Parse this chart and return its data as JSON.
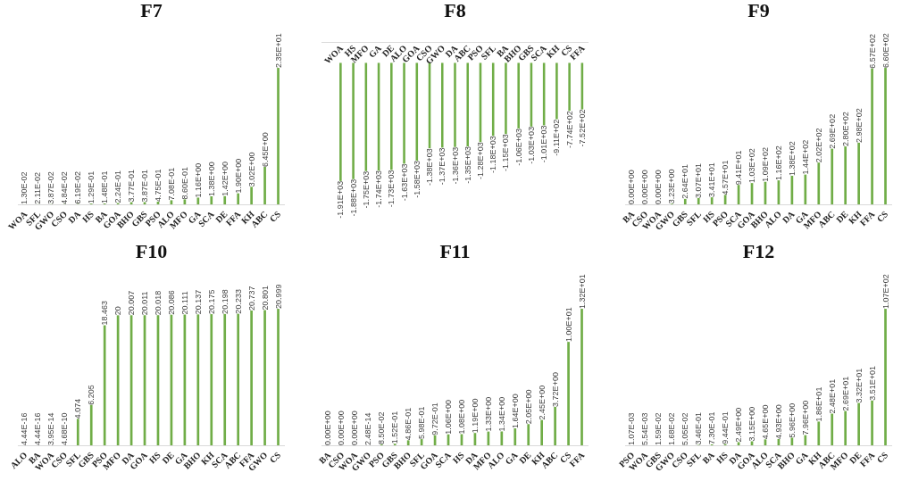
{
  "chart_data": [
    {
      "type": "bar",
      "title": "F7",
      "color": "#70ad47",
      "categories": [
        "WOA",
        "SFL",
        "GWO",
        "CSO",
        "DA",
        "HS",
        "BA",
        "GOA",
        "BHO",
        "GBS",
        "PSO",
        "ALO",
        "MFO",
        "GA",
        "SCA",
        "DE",
        "FFA",
        "KH",
        "ABC",
        "CS"
      ],
      "values": [
        0.013,
        0.0211,
        0.0387,
        0.0484,
        0.0619,
        0.129,
        0.148,
        0.224,
        0.377,
        0.387,
        0.475,
        0.708,
        0.86,
        1.16,
        1.38,
        1.42,
        1.9,
        3.02,
        6.45,
        23.5
      ],
      "value_labels": [
        "1.30E-02",
        "2.11E-02",
        "3.87E-02",
        "4.84E-02",
        "6.19E-02",
        "1.29E-01",
        "1.48E-01",
        "2.24E-01",
        "3.77E-01",
        "3.87E-01",
        "4.75E-01",
        "7.08E-01",
        "8.60E-01",
        "1.16E+00",
        "1.38E+00",
        "1.42E+00",
        "1.90E+00",
        "3.02E+00",
        "6.45E+00",
        "2.35E+01"
      ]
    },
    {
      "type": "bar",
      "title": "F8",
      "color": "#70ad47",
      "categories": [
        "WOA",
        "HS",
        "MFO",
        "GA",
        "DE",
        "ALO",
        "GOA",
        "CSO",
        "GWO",
        "DA",
        "ABC",
        "PSO",
        "SFL",
        "BA",
        "BHO",
        "GBS",
        "SCA",
        "KH",
        "CS",
        "FFA"
      ],
      "values": [
        -1910,
        -1880,
        -1750,
        -1740,
        -1730,
        -1630,
        -1580,
        -1380,
        -1370,
        -1360,
        -1350,
        -1280,
        -1180,
        -1150,
        -1060,
        -1030,
        -1010,
        -911,
        -774,
        -752
      ],
      "value_labels": [
        "-1.91E+03",
        "-1.88E+03",
        "-1.75E+03",
        "-1.74E+03",
        "-1.73E+03",
        "-1.63E+03",
        "-1.58E+03",
        "-1.38E+03",
        "-1.37E+03",
        "-1.36E+03",
        "-1.35E+03",
        "-1.28E+03",
        "-1.18E+03",
        "-1.15E+03",
        "-1.06E+03",
        "-1.03E+03",
        "-1.01E+03",
        "-9.11E+02",
        "-7.74E+02",
        "-7.52E+02"
      ]
    },
    {
      "type": "bar",
      "title": "F9",
      "color": "#70ad47",
      "categories": [
        "BA",
        "CSO",
        "WOA",
        "GWO",
        "GBS",
        "SFL",
        "HS",
        "PSO",
        "SCA",
        "GOA",
        "BHO",
        "ALO",
        "DA",
        "GA",
        "MFO",
        "ABC",
        "DE",
        "KH",
        "FFA",
        "CS"
      ],
      "values": [
        0,
        0,
        0,
        3.23,
        26.4,
        30.7,
        34.1,
        45.7,
        94.1,
        103,
        109,
        116,
        138,
        144,
        202,
        269,
        280,
        298,
        657,
        660
      ],
      "value_labels": [
        "0.00E+00",
        "0.00E+00",
        "0.00E+00",
        "3.23E+00",
        "2.64E+01",
        "3.07E+01",
        "3.41E+01",
        "4.57E+01",
        "9.41E+01",
        "1.03E+02",
        "1.09E+02",
        "1.16E+02",
        "1.38E+02",
        "1.44E+02",
        "2.02E+02",
        "2.69E+02",
        "2.80E+02",
        "2.98E+02",
        "6.57E+02",
        "6.60E+02"
      ]
    },
    {
      "type": "bar",
      "title": "F10",
      "color": "#70ad47",
      "categories": [
        "ALO",
        "BA",
        "WOA",
        "CSO",
        "SFL",
        "GBS",
        "PSO",
        "MFO",
        "DA",
        "GOA",
        "HS",
        "DE",
        "GA",
        "BHO",
        "KH",
        "SCA",
        "ABC",
        "FFA",
        "GWO",
        "CS"
      ],
      "values": [
        4.44e-16,
        4.44e-16,
        3.95e-14,
        4.68e-10,
        4.074,
        6.205,
        18.463,
        20,
        20.007,
        20.011,
        20.018,
        20.086,
        20.111,
        20.137,
        20.175,
        20.198,
        20.233,
        20.737,
        20.801,
        20.999
      ],
      "value_labels": [
        "4.44E-16",
        "4.44E-16",
        "3.95E-14",
        "4.68E-10",
        "4.074",
        "6.205",
        "18.463",
        "20",
        "20.007",
        "20.011",
        "20.018",
        "20.086",
        "20.111",
        "20.137",
        "20.175",
        "20.198",
        "20.233",
        "20.737",
        "20.801",
        "20.999"
      ]
    },
    {
      "type": "bar",
      "title": "F11",
      "color": "#70ad47",
      "categories": [
        "BA",
        "CSO",
        "WOA",
        "GWO",
        "PSO",
        "GBS",
        "BHO",
        "SFL",
        "GOA",
        "SCA",
        "HS",
        "DA",
        "MFO",
        "ALO",
        "GA",
        "DE",
        "KH",
        "ABC",
        "CS",
        "FFA"
      ],
      "values": [
        0,
        0,
        0,
        2.48e-14,
        0.085,
        0.152,
        0.486,
        0.598,
        0.972,
        1.06,
        1.08,
        1.19,
        1.33,
        1.34,
        1.64,
        2.05,
        2.45,
        3.72,
        10.0,
        13.2
      ],
      "value_labels": [
        "0.00E+00",
        "0.00E+00",
        "0.00E+00",
        "2.48E-14",
        "8.50E-02",
        "1.52E-01",
        "4.86E-01",
        "5.98E-01",
        "9.72E-01",
        "1.06E+00",
        "1.08E+00",
        "1.19E+00",
        "1.33E+00",
        "1.34E+00",
        "1.64E+00",
        "2.05E+00",
        "2.45E+00",
        "3.72E+00",
        "1.00E+01",
        "1.32E+01"
      ]
    },
    {
      "type": "bar",
      "title": "F12",
      "color": "#70ad47",
      "categories": [
        "PSO",
        "WOA",
        "GBS",
        "GWO",
        "CSO",
        "SFL",
        "BA",
        "HS",
        "DA",
        "GOA",
        "ALO",
        "SCA",
        "BHO",
        "GA",
        "KH",
        "ABC",
        "MFO",
        "DE",
        "FFA",
        "CS"
      ],
      "values": [
        0.00107,
        0.00554,
        0.0159,
        0.0168,
        0.0505,
        0.346,
        0.73,
        0.944,
        2.49,
        3.15,
        4.65,
        4.93,
        5.96,
        7.96,
        18.6,
        24.8,
        26.9,
        33.2,
        35.1,
        107
      ],
      "value_labels": [
        "1.07E-03",
        "5.54E-03",
        "1.59E-02",
        "1.68E-02",
        "5.05E-02",
        "3.46E-01",
        "7.30E-01",
        "9.44E-01",
        "2.49E+00",
        "3.15E+00",
        "4.65E+00",
        "4.93E+00",
        "5.96E+00",
        "7.96E+00",
        "1.86E+01",
        "2.48E+01",
        "2.69E+01",
        "3.32E+01",
        "3.51E+01",
        "1.07E+02"
      ]
    }
  ]
}
